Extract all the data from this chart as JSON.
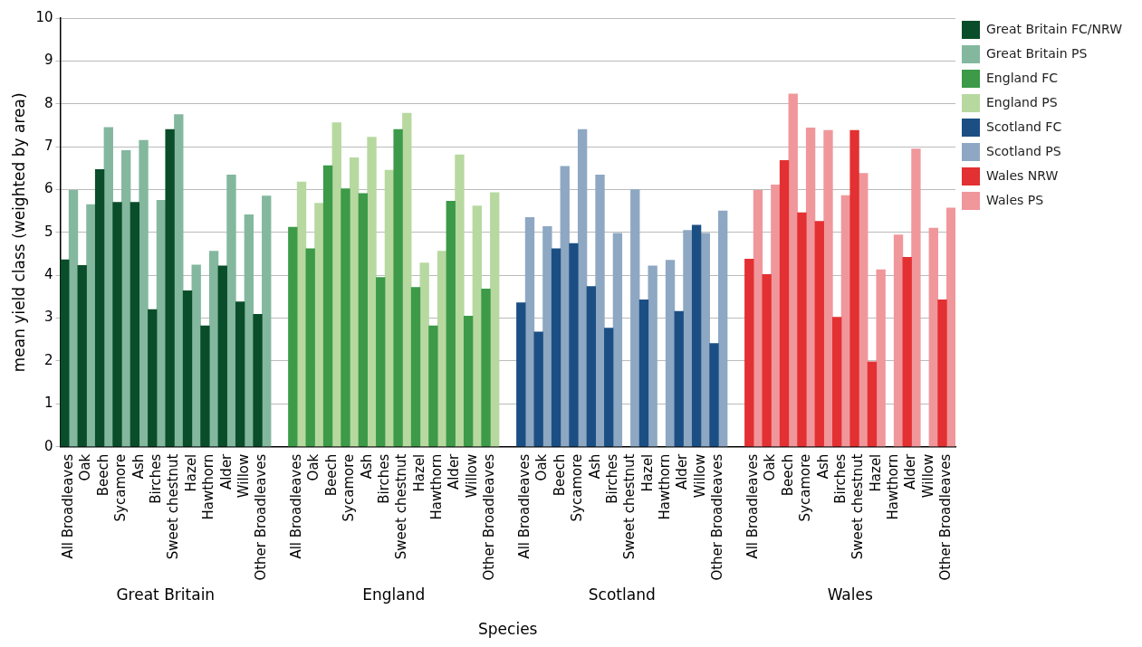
{
  "chart_data": {
    "type": "bar",
    "xlabel": "Species",
    "ylabel": "mean yield class (weighted by area)",
    "categories": [
      "All Broadleaves",
      "Oak",
      "Beech",
      "Sycamore",
      "Ash",
      "Birches",
      "Sweet chestnut",
      "Hazel",
      "Hawthorn",
      "Alder",
      "Willow",
      "Other Broadleaves",
      null,
      "All Broadleaves",
      "Oak",
      "Beech",
      "Sycamore",
      "Ash",
      "Birches",
      "Sweet chestnut",
      "Hazel",
      "Hawthorn",
      "Alder",
      "Willow",
      "Other Broadleaves",
      null,
      "All Broadleaves",
      "Oak",
      "Beech",
      "Sycamore",
      "Ash",
      "Birches",
      "Sweet chestnut",
      "Hazel",
      "Hawthorn",
      "Alder",
      "Willow",
      "Other Broadleaves",
      null,
      "All Broadleaves",
      "Oak",
      "Beech",
      "Sycamore",
      "Ash",
      "Birches",
      "Sweet chestnut",
      "Hazel",
      "Hawthorn",
      "Alder",
      "Willow",
      "Other Broadleaves"
    ],
    "annotations": [
      "Great Britain",
      "England",
      "Scotland",
      "Wales"
    ],
    "series": [
      {
        "name": "Great Britain FC/NRW",
        "color": "#0a4d2a",
        "values": [
          4.36,
          4.23,
          6.47,
          5.7,
          5.7,
          3.2,
          7.4,
          3.64,
          2.82,
          4.22,
          3.38,
          3.09,
          null,
          null,
          null,
          null,
          null,
          null,
          null,
          null,
          null,
          null,
          null,
          null,
          null,
          null,
          null,
          null,
          null,
          null,
          null,
          null,
          null,
          null,
          null,
          null,
          null,
          null,
          null,
          null,
          null,
          null,
          null,
          null,
          null,
          null,
          null,
          null,
          null,
          null,
          null
        ]
      },
      {
        "name": "Great Britain PS",
        "color": "#83b89f",
        "values": [
          5.98,
          5.65,
          7.45,
          6.91,
          7.15,
          5.75,
          7.75,
          4.24,
          4.56,
          6.34,
          5.41,
          5.85,
          null,
          null,
          null,
          null,
          null,
          null,
          null,
          null,
          null,
          null,
          null,
          null,
          null,
          null,
          null,
          null,
          null,
          null,
          null,
          null,
          null,
          null,
          null,
          null,
          null,
          null,
          null,
          null,
          null,
          null,
          null,
          null,
          null,
          null,
          null,
          null,
          null,
          null,
          null
        ]
      },
      {
        "name": "England FC",
        "color": "#3c9a48",
        "values": [
          null,
          null,
          null,
          null,
          null,
          null,
          null,
          null,
          null,
          null,
          null,
          null,
          null,
          5.12,
          4.62,
          6.56,
          6.02,
          5.91,
          3.95,
          7.4,
          3.72,
          2.82,
          5.73,
          3.05,
          3.68,
          null,
          null,
          null,
          null,
          null,
          null,
          null,
          null,
          null,
          null,
          null,
          null,
          null,
          null,
          null,
          null,
          null,
          null,
          null,
          null,
          null,
          null,
          null,
          null,
          null,
          null
        ]
      },
      {
        "name": "England PS",
        "color": "#b7d9a0",
        "values": [
          null,
          null,
          null,
          null,
          null,
          null,
          null,
          null,
          null,
          null,
          null,
          null,
          null,
          6.18,
          5.68,
          7.56,
          6.74,
          7.22,
          6.45,
          7.78,
          4.29,
          4.56,
          6.81,
          5.62,
          5.93,
          null,
          null,
          null,
          null,
          null,
          null,
          null,
          null,
          null,
          null,
          null,
          null,
          null,
          null,
          null,
          null,
          null,
          null,
          null,
          null,
          null,
          null,
          null,
          null,
          null,
          null
        ]
      },
      {
        "name": "Scotland FC",
        "color": "#1b4f84",
        "values": [
          null,
          null,
          null,
          null,
          null,
          null,
          null,
          null,
          null,
          null,
          null,
          null,
          null,
          null,
          null,
          null,
          null,
          null,
          null,
          null,
          null,
          null,
          null,
          null,
          null,
          null,
          3.36,
          2.68,
          4.62,
          4.74,
          3.74,
          2.77,
          null,
          3.43,
          null,
          3.16,
          5.17,
          2.41,
          null,
          null,
          null,
          null,
          null,
          null,
          null,
          null,
          null,
          null,
          null,
          null,
          null
        ]
      },
      {
        "name": "Scotland PS",
        "color": "#8ea8c3",
        "values": [
          null,
          null,
          null,
          null,
          null,
          null,
          null,
          null,
          null,
          null,
          null,
          null,
          null,
          null,
          null,
          null,
          null,
          null,
          null,
          null,
          null,
          null,
          null,
          null,
          null,
          null,
          5.35,
          5.14,
          6.54,
          7.4,
          6.34,
          4.98,
          6.0,
          4.22,
          4.35,
          5.05,
          4.98,
          5.5,
          null,
          null,
          null,
          null,
          null,
          null,
          null,
          null,
          null,
          null,
          null,
          null,
          null
        ]
      },
      {
        "name": "Wales NRW",
        "color": "#e33032",
        "values": [
          null,
          null,
          null,
          null,
          null,
          null,
          null,
          null,
          null,
          null,
          null,
          null,
          null,
          null,
          null,
          null,
          null,
          null,
          null,
          null,
          null,
          null,
          null,
          null,
          null,
          null,
          null,
          null,
          null,
          null,
          null,
          null,
          null,
          null,
          null,
          null,
          null,
          null,
          null,
          4.38,
          4.02,
          6.68,
          5.46,
          5.26,
          3.02,
          7.38,
          1.98,
          null,
          4.42,
          null,
          3.43
        ]
      },
      {
        "name": "Wales PS",
        "color": "#f0979b",
        "values": [
          null,
          null,
          null,
          null,
          null,
          null,
          null,
          null,
          null,
          null,
          null,
          null,
          null,
          null,
          null,
          null,
          null,
          null,
          null,
          null,
          null,
          null,
          null,
          null,
          null,
          null,
          null,
          null,
          null,
          null,
          null,
          null,
          null,
          null,
          null,
          null,
          null,
          null,
          null,
          5.98,
          6.11,
          8.23,
          7.44,
          7.38,
          5.86,
          6.38,
          4.13,
          4.94,
          6.95,
          5.1,
          5.57
        ]
      }
    ],
    "ylim": [
      0,
      10
    ],
    "yticks": [
      0,
      1,
      2,
      3,
      4,
      5,
      6,
      7,
      8,
      9,
      10
    ],
    "grid": "y",
    "legend": "top right"
  }
}
